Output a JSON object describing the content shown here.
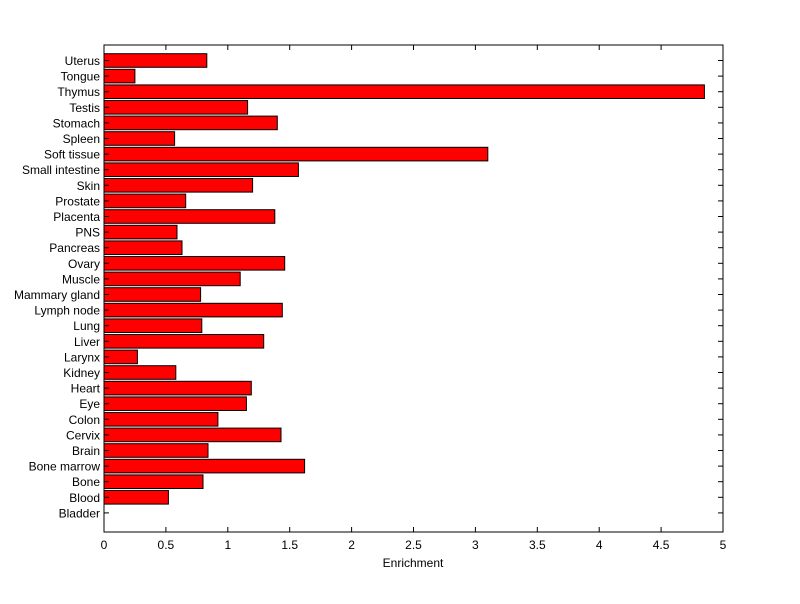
{
  "chart_data": {
    "type": "bar",
    "orientation": "horizontal",
    "title": "",
    "xlabel": "Enrichment",
    "ylabel": "",
    "xlim": [
      0,
      5
    ],
    "xticks": [
      "0",
      "0.5",
      "1",
      "1.5",
      "2",
      "2.5",
      "3",
      "3.5",
      "4",
      "4.5",
      "5"
    ],
    "grid": false,
    "bar_color": "#ff0000",
    "bar_edge_color": "#000000",
    "categories": [
      "Uterus",
      "Tongue",
      "Thymus",
      "Testis",
      "Stomach",
      "Spleen",
      "Soft tissue",
      "Small intestine",
      "Skin",
      "Prostate",
      "Placenta",
      "PNS",
      "Pancreas",
      "Ovary",
      "Muscle",
      "Mammary gland",
      "Lymph node",
      "Lung",
      "Liver",
      "Larynx",
      "Kidney",
      "Heart",
      "Eye",
      "Colon",
      "Cervix",
      "Brain",
      "Bone marrow",
      "Bone",
      "Blood",
      "Bladder"
    ],
    "values": [
      0.83,
      0.25,
      4.85,
      1.16,
      1.4,
      0.57,
      3.1,
      1.57,
      1.2,
      0.66,
      1.38,
      0.59,
      0.63,
      1.46,
      1.1,
      0.78,
      1.44,
      0.79,
      1.29,
      0.27,
      0.58,
      1.19,
      1.15,
      0.92,
      1.43,
      0.84,
      1.62,
      0.8,
      0.52,
      0.0
    ]
  }
}
